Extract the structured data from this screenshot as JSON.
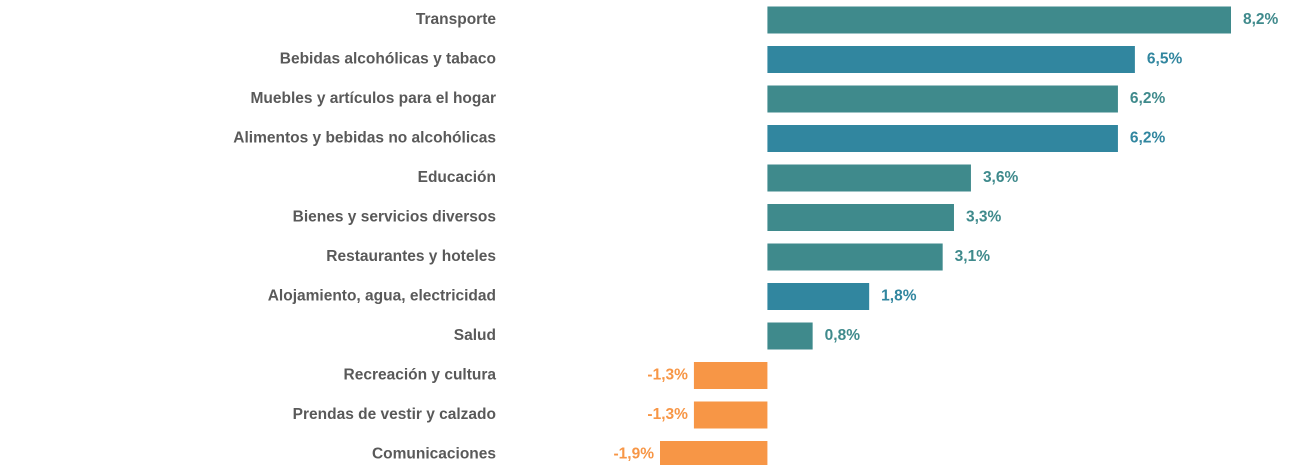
{
  "chart_data": {
    "type": "hbar",
    "categories": [
      "Transporte",
      "Bebidas alcohólicas y tabaco",
      "Muebles y artículos para el hogar",
      "Alimentos y bebidas no alcohólicas",
      "Educación",
      "Bienes y servicios diversos",
      "Restaurantes y hoteles",
      "Alojamiento, agua, electricidad",
      "Salud",
      "Recreación y cultura",
      "Prendas de vestir y calzado",
      "Comunicaciones"
    ],
    "values": [
      8.2,
      6.5,
      6.2,
      6.2,
      3.6,
      3.3,
      3.1,
      1.8,
      0.8,
      -1.3,
      -1.3,
      -1.9
    ],
    "value_labels": [
      "8,2%",
      "6,5%",
      "6,2%",
      "6,2%",
      "3,6%",
      "3,3%",
      "3,1%",
      "1,8%",
      "0,8%",
      "-1,3%",
      "-1,3%",
      "-1,9%"
    ],
    "colors": [
      "#3f8a8c",
      "#31869f",
      "#3f8a8c",
      "#31869f",
      "#3f8a8c",
      "#3f8a8c",
      "#3f8a8c",
      "#31869f",
      "#3f8a8c",
      "#f79646",
      "#f79646",
      "#f79646"
    ]
  }
}
